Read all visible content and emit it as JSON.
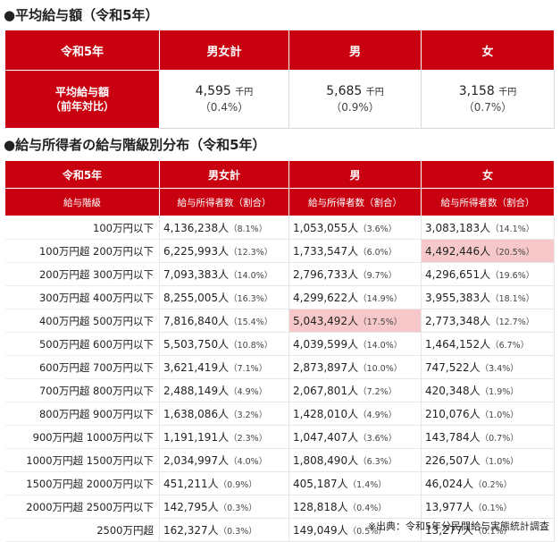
{
  "section1": {
    "title": "●平均給与額（令和5年）",
    "header": [
      "令和5年",
      "男女計",
      "男",
      "女"
    ],
    "row": {
      "label": [
        "平均給与額",
        "（前年対比）"
      ],
      "cells": [
        {
          "value": "4,595",
          "unit": "千円",
          "change": "（0.4%）"
        },
        {
          "value": "5,685",
          "unit": "千円",
          "change": "（0.9%）"
        },
        {
          "value": "3,158",
          "unit": "千円",
          "change": "（0.7%）"
        }
      ]
    }
  },
  "section2": {
    "title": "●給与所得者の給与階級別分布（令和5年）",
    "header": [
      "令和5年",
      "男女計",
      "男",
      "女"
    ],
    "subheader": [
      "給与階級",
      "給与所得者数（割合）",
      "給与所得者数（割合）",
      "給与所得者数（割合）"
    ],
    "rows": [
      {
        "label": "100万円以下",
        "cells": [
          {
            "count": "4,136,238人",
            "pct": "（8.1%）"
          },
          {
            "count": "1,053,055人",
            "pct": "（3.6%）"
          },
          {
            "count": "3,083,183人",
            "pct": "（14.1%）"
          }
        ]
      },
      {
        "label": "100万円超 200万円以下",
        "cells": [
          {
            "count": "6,225,993人",
            "pct": "（12.3%）"
          },
          {
            "count": "1,733,547人",
            "pct": "（6.0%）"
          },
          {
            "count": "4,492,446人",
            "pct": "（20.5%）",
            "highlight": true
          }
        ]
      },
      {
        "label": "200万円超 300万円以下",
        "cells": [
          {
            "count": "7,093,383人",
            "pct": "（14.0%）"
          },
          {
            "count": "2,796,733人",
            "pct": "（9.7%）"
          },
          {
            "count": "4,296,651人",
            "pct": "（19.6%）"
          }
        ]
      },
      {
        "label": "300万円超 400万円以下",
        "cells": [
          {
            "count": "8,255,005人",
            "pct": "（16.3%）"
          },
          {
            "count": "4,299,622人",
            "pct": "（14.9%）"
          },
          {
            "count": "3,955,383人",
            "pct": "（18.1%）"
          }
        ]
      },
      {
        "label": "400万円超 500万円以下",
        "cells": [
          {
            "count": "7,816,840人",
            "pct": "（15.4%）"
          },
          {
            "count": "5,043,492人",
            "pct": "（17.5%）",
            "highlight": true
          },
          {
            "count": "2,773,348人",
            "pct": "（12.7%）"
          }
        ]
      },
      {
        "label": "500万円超 600万円以下",
        "cells": [
          {
            "count": "5,503,750人",
            "pct": "（10.8%）"
          },
          {
            "count": "4,039,599人",
            "pct": "（14.0%）"
          },
          {
            "count": "1,464,152人",
            "pct": "（6.7%）"
          }
        ]
      },
      {
        "label": "600万円超 700万円以下",
        "cells": [
          {
            "count": "3,621,419人",
            "pct": "（7.1%）"
          },
          {
            "count": "2,873,897人",
            "pct": "（10.0%）"
          },
          {
            "count": "747,522人",
            "pct": "（3.4%）"
          }
        ]
      },
      {
        "label": "700万円超 800万円以下",
        "cells": [
          {
            "count": "2,488,149人",
            "pct": "（4.9%）"
          },
          {
            "count": "2,067,801人",
            "pct": "（7.2%）"
          },
          {
            "count": "420,348人",
            "pct": "（1.9%）"
          }
        ]
      },
      {
        "label": "800万円超 900万円以下",
        "cells": [
          {
            "count": "1,638,086人",
            "pct": "（3.2%）"
          },
          {
            "count": "1,428,010人",
            "pct": "（4.9%）"
          },
          {
            "count": "210,076人",
            "pct": "（1.0%）"
          }
        ]
      },
      {
        "label": "900万円超 1000万円以下",
        "cells": [
          {
            "count": "1,191,191人",
            "pct": "（2.3%）"
          },
          {
            "count": "1,047,407人",
            "pct": "（3.6%）"
          },
          {
            "count": "143,784人",
            "pct": "（0.7%）"
          }
        ]
      },
      {
        "label": "1000万円超 1500万円以下",
        "cells": [
          {
            "count": "2,034,997人",
            "pct": "（4.0%）"
          },
          {
            "count": "1,808,490人",
            "pct": "（6.3%）"
          },
          {
            "count": "226,507人",
            "pct": "（1.0%）"
          }
        ]
      },
      {
        "label": "1500万円超 2000万円以下",
        "cells": [
          {
            "count": "451,211人",
            "pct": "（0.9%）"
          },
          {
            "count": "405,187人",
            "pct": "（1.4%）"
          },
          {
            "count": "46,024人",
            "pct": "（0.2%）"
          }
        ]
      },
      {
        "label": "2000万円超 2500万円以下",
        "cells": [
          {
            "count": "142,795人",
            "pct": "（0.3%）"
          },
          {
            "count": "128,818人",
            "pct": "（0.4%）"
          },
          {
            "count": "13,977人",
            "pct": "（0.1%）"
          }
        ]
      },
      {
        "label": "2500万円超",
        "cells": [
          {
            "count": "162,327人",
            "pct": "（0.3%）"
          },
          {
            "count": "149,049人",
            "pct": "（0.5%）"
          },
          {
            "count": "13,277人",
            "pct": "（0.1%）"
          }
        ]
      }
    ]
  },
  "source": "※出典：令和5年分民間給与実態統計調査"
}
